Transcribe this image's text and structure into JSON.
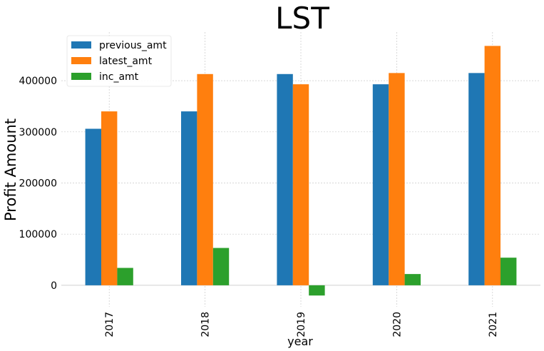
{
  "chart_data": {
    "type": "bar",
    "title": "LST",
    "xlabel": "year",
    "ylabel": "Profit Amount",
    "categories": [
      "2017",
      "2018",
      "2019",
      "2020",
      "2021"
    ],
    "series": [
      {
        "name": "previous_amt",
        "color": "#1f77b4",
        "values": [
          306000,
          340000,
          413000,
          393000,
          415000
        ]
      },
      {
        "name": "latest_amt",
        "color": "#ff7f0e",
        "values": [
          340000,
          413000,
          393000,
          415000,
          468000
        ]
      },
      {
        "name": "inc_amt",
        "color": "#2ca02c",
        "values": [
          34000,
          73000,
          -20000,
          22000,
          54000
        ]
      }
    ],
    "ylim": [
      -42000,
      495000
    ],
    "yticks": [
      0,
      100000,
      200000,
      300000,
      400000
    ],
    "ytick_labels": [
      "0",
      "100000",
      "200000",
      "300000",
      "400000"
    ],
    "grid": true,
    "legend": "top-left"
  }
}
